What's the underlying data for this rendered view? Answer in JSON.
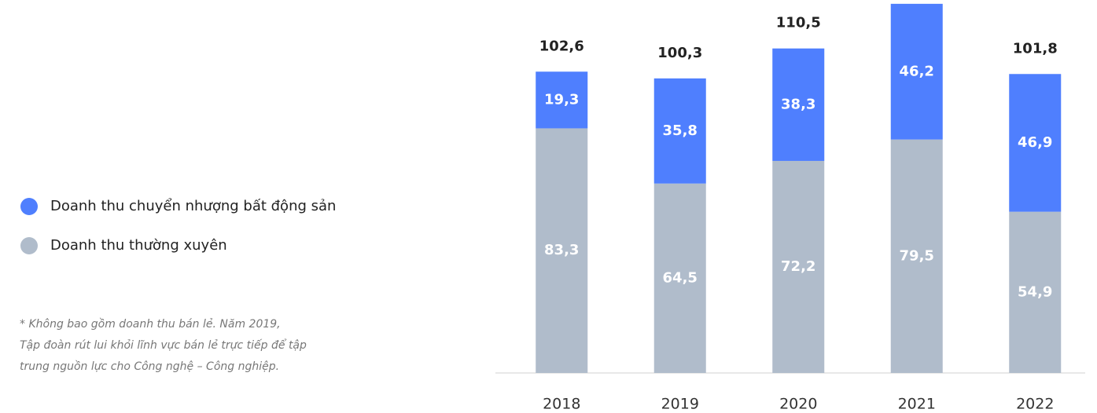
{
  "chart_data": {
    "type": "stacked_bar",
    "categories": [
      "2018",
      "2019",
      "2020",
      "2021",
      "2022"
    ],
    "series": [
      {
        "name": "Doanh thu thường xuyên",
        "color": "#b0bccb",
        "values": [
          83.3,
          64.5,
          72.2,
          79.5,
          54.9
        ],
        "value_labels": [
          "83,3",
          "64,5",
          "72,2",
          "79,5",
          "54,9"
        ]
      },
      {
        "name": "Doanh thu chuyển nhượng bất động sản",
        "color": "#4f7ffe",
        "values": [
          19.3,
          35.8,
          38.3,
          46.2,
          46.9
        ],
        "value_labels": [
          "19,3",
          "35,8",
          "38,3",
          "46,2",
          "46,9"
        ]
      }
    ],
    "totals": [
      102.6,
      100.3,
      110.5,
      null,
      101.8
    ],
    "total_labels": [
      "102,6",
      "100,3",
      "110,5",
      null,
      "101,8"
    ],
    "ylim": [
      0,
      127
    ],
    "footnote": [
      "* Không bao gồm doanh thu bán lẻ. Năm 2019,",
      "Tập đoàn rút lui khỏi lĩnh vực bán lẻ trực tiếp để tập",
      "trung nguồn lực cho Công nghệ – Công nghiệp."
    ]
  }
}
